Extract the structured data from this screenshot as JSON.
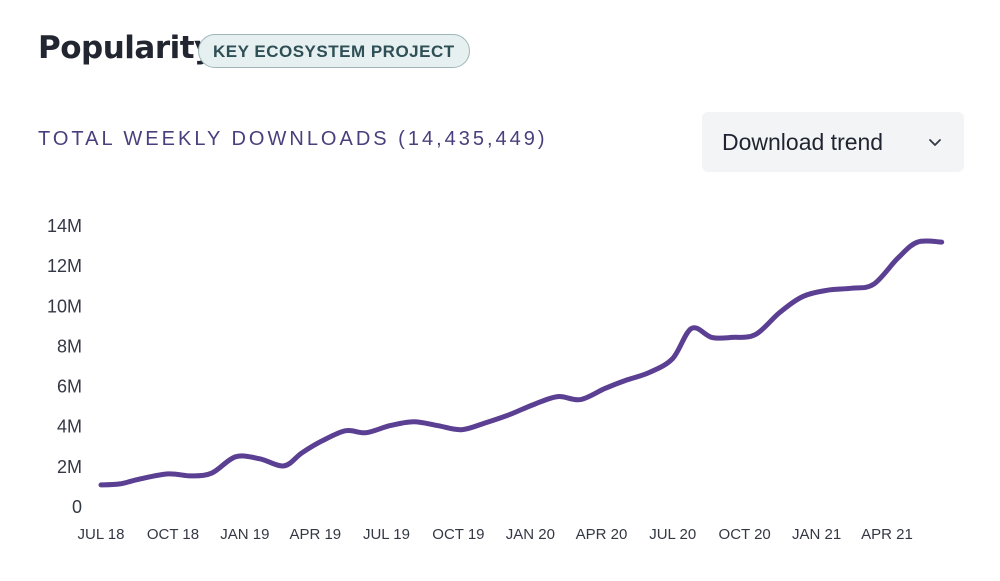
{
  "header": {
    "title": "Popularity",
    "badge": "KEY ECOSYSTEM PROJECT"
  },
  "subtitle": "TOTAL WEEKLY DOWNLOADS (14,435,449)",
  "selector": {
    "value": "Download trend",
    "icon": "chevron-down-icon"
  },
  "colors": {
    "line": "#5b3f92",
    "subtitle": "#4a3f7c",
    "badge_bg": "#e6f0f0"
  },
  "chart_data": {
    "type": "line",
    "title": "",
    "xlabel": "",
    "ylabel": "",
    "ylim": [
      0,
      14000000
    ],
    "y_ticks": [
      {
        "value": 0,
        "label": "0"
      },
      {
        "value": 2000000,
        "label": "2M"
      },
      {
        "value": 4000000,
        "label": "4M"
      },
      {
        "value": 6000000,
        "label": "6M"
      },
      {
        "value": 8000000,
        "label": "8M"
      },
      {
        "value": 10000000,
        "label": "10M"
      },
      {
        "value": 12000000,
        "label": "12M"
      },
      {
        "value": 14000000,
        "label": "14M"
      }
    ],
    "x_ticks": [
      {
        "value": "2018-07-01",
        "label": "JUL 18"
      },
      {
        "value": "2018-10-01",
        "label": "OCT 18"
      },
      {
        "value": "2019-01-01",
        "label": "JAN 19"
      },
      {
        "value": "2019-04-01",
        "label": "APR 19"
      },
      {
        "value": "2019-07-01",
        "label": "JUL 19"
      },
      {
        "value": "2019-10-01",
        "label": "OCT 19"
      },
      {
        "value": "2020-01-01",
        "label": "JAN 20"
      },
      {
        "value": "2020-04-01",
        "label": "APR 20"
      },
      {
        "value": "2020-07-01",
        "label": "JUL 20"
      },
      {
        "value": "2020-10-01",
        "label": "OCT 20"
      },
      {
        "value": "2021-01-01",
        "label": "JAN 21"
      },
      {
        "value": "2021-04-01",
        "label": "APR 21"
      }
    ],
    "grid": false,
    "legend": "none",
    "series": [
      {
        "x": [
          "2018-07-01",
          "2018-07-25",
          "2018-08-20",
          "2018-09-25",
          "2018-10-25",
          "2018-11-20",
          "2018-12-20",
          "2019-01-20",
          "2019-02-20",
          "2019-03-15",
          "2019-04-10",
          "2019-05-10",
          "2019-06-05",
          "2019-07-05",
          "2019-08-05",
          "2019-09-05",
          "2019-10-05",
          "2019-11-05",
          "2019-12-05",
          "2020-01-05",
          "2020-02-05",
          "2020-03-05",
          "2020-04-05",
          "2020-05-01",
          "2020-06-01",
          "2020-07-01",
          "2020-07-25",
          "2020-08-20",
          "2020-09-15",
          "2020-10-15",
          "2020-11-15",
          "2020-12-15",
          "2021-01-15",
          "2021-02-15",
          "2021-03-15",
          "2021-04-15",
          "2021-05-10",
          "2021-06-10"
        ],
        "values": [
          1100000,
          1150000,
          1400000,
          1650000,
          1550000,
          1700000,
          2500000,
          2400000,
          2050000,
          2700000,
          3300000,
          3800000,
          3700000,
          4050000,
          4250000,
          4050000,
          3850000,
          4200000,
          4600000,
          5100000,
          5500000,
          5350000,
          5900000,
          6300000,
          6700000,
          7400000,
          8900000,
          8450000,
          8450000,
          8600000,
          9700000,
          10500000,
          10800000,
          10900000,
          11100000,
          12400000,
          13200000,
          13200000
        ]
      }
    ]
  }
}
